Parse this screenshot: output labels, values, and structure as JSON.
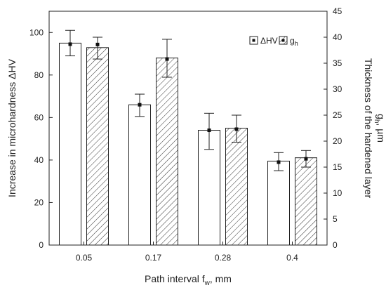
{
  "chart_data": {
    "type": "bar",
    "categories": [
      "0.05",
      "0.17",
      "0.28",
      "0.4"
    ],
    "xlabel_main": "Path interval f",
    "xlabel_sub": "w",
    "xlabel_unit": ", mm",
    "ylabel_left": "Increase in microhardness ΔHV",
    "ylabel_right_line1": "Thickness of the hardened layer",
    "ylabel_right_line2_main": "g",
    "ylabel_right_line2_sub": "h",
    "ylabel_right_line2_unit": ", µm",
    "ylim_left": [
      0,
      110
    ],
    "ylim_right": [
      0,
      45
    ],
    "yticks_left": [
      0,
      20,
      40,
      60,
      80,
      100
    ],
    "yticks_right": [
      0,
      5,
      10,
      15,
      20,
      25,
      30,
      35,
      40,
      45
    ],
    "legend_position": "top-right",
    "series": [
      {
        "name": "ΔHV",
        "name_sub": "",
        "axis": "left",
        "fill": "white",
        "values": [
          95,
          66,
          54,
          39.5
        ],
        "error_low": [
          89,
          60.5,
          45,
          35
        ],
        "error_high": [
          101,
          71,
          62,
          43.5
        ],
        "markers": [
          94.5,
          66,
          54,
          39
        ]
      },
      {
        "name": "g",
        "name_sub": "h",
        "axis": "right",
        "fill": "hatched",
        "values": [
          38,
          36,
          22.5,
          16.8
        ],
        "error_low": [
          35.8,
          32.3,
          19.8,
          15
        ],
        "error_high": [
          40,
          39.6,
          25,
          18.2
        ],
        "markers": [
          38.6,
          35.8,
          22.3,
          16.6
        ]
      }
    ]
  }
}
